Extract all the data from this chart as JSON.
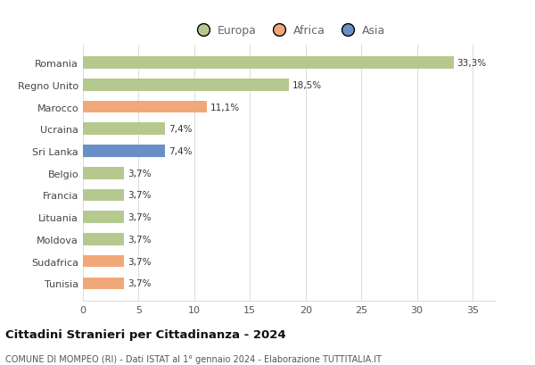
{
  "countries": [
    "Romania",
    "Regno Unito",
    "Marocco",
    "Ucraina",
    "Sri Lanka",
    "Belgio",
    "Francia",
    "Lituania",
    "Moldova",
    "Sudafrica",
    "Tunisia"
  ],
  "values": [
    33.3,
    18.5,
    11.1,
    7.4,
    7.4,
    3.7,
    3.7,
    3.7,
    3.7,
    3.7,
    3.7
  ],
  "labels": [
    "33,3%",
    "18,5%",
    "11,1%",
    "7,4%",
    "7,4%",
    "3,7%",
    "3,7%",
    "3,7%",
    "3,7%",
    "3,7%",
    "3,7%"
  ],
  "continents": [
    "Europa",
    "Europa",
    "Africa",
    "Europa",
    "Asia",
    "Europa",
    "Europa",
    "Europa",
    "Europa",
    "Africa",
    "Africa"
  ],
  "colors": {
    "Europa": "#b5c98e",
    "Africa": "#f0a878",
    "Asia": "#6a8fc8"
  },
  "xlim": [
    0,
    37
  ],
  "xticks": [
    0,
    5,
    10,
    15,
    20,
    25,
    30,
    35
  ],
  "title": "Cittadini Stranieri per Cittadinanza - 2024",
  "subtitle": "COMUNE DI MOMPEO (RI) - Dati ISTAT al 1° gennaio 2024 - Elaborazione TUTTITALIA.IT",
  "bg_color": "#ffffff",
  "grid_color": "#dddddd",
  "bar_height": 0.55,
  "legend_labels": [
    "Europa",
    "Africa",
    "Asia"
  ],
  "legend_colors": [
    "#b5c98e",
    "#f0a878",
    "#6a8fc8"
  ]
}
